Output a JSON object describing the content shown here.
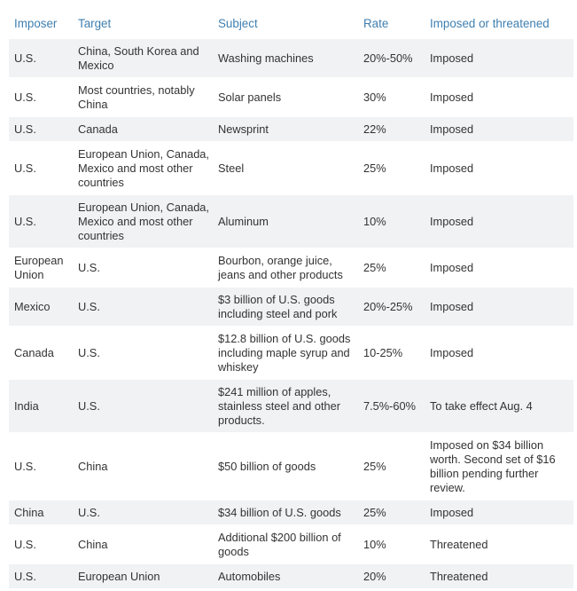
{
  "headers": {
    "imposer": "Imposer",
    "target": "Target",
    "subject": "Subject",
    "rate": "Rate",
    "status": "Imposed or threatened"
  },
  "rows": [
    {
      "imposer": "U.S.",
      "target": "China, South Korea and Mexico",
      "subject": "Washing machines",
      "rate": "20%-50%",
      "status": "Imposed"
    },
    {
      "imposer": "U.S.",
      "target": "Most countries, notably China",
      "subject": "Solar panels",
      "rate": "30%",
      "status": "Imposed"
    },
    {
      "imposer": "U.S.",
      "target": "Canada",
      "subject": "Newsprint",
      "rate": "22%",
      "status": "Imposed"
    },
    {
      "imposer": "U.S.",
      "target": "European Union, Canada, Mexico and most other countries",
      "subject": "Steel",
      "rate": "25%",
      "status": "Imposed"
    },
    {
      "imposer": "U.S.",
      "target": "European Union, Canada, Mexico and most other countries",
      "subject": "Aluminum",
      "rate": "10%",
      "status": "Imposed"
    },
    {
      "imposer": "European Union",
      "target": "U.S.",
      "subject": "Bourbon, orange juice, jeans and other products",
      "rate": "25%",
      "status": "Imposed"
    },
    {
      "imposer": "Mexico",
      "target": "U.S.",
      "subject": "$3 billion of U.S. goods including steel and pork",
      "rate": "20%-25%",
      "status": "Imposed"
    },
    {
      "imposer": "Canada",
      "target": "U.S.",
      "subject": "$12.8 billion of U.S. goods including maple syrup and whiskey",
      "rate": "10-25%",
      "status": "Imposed"
    },
    {
      "imposer": "India",
      "target": "U.S.",
      "subject": "$241 million of apples, stainless steel and other products.",
      "rate": "7.5%-60%",
      "status": "To take effect Aug. 4"
    },
    {
      "imposer": "U.S.",
      "target": "China",
      "subject": "$50 billion of goods",
      "rate": "25%",
      "status": "Imposed on $34 billion worth. Second set of $16 billion pending further review."
    },
    {
      "imposer": "China",
      "target": "U.S.",
      "subject": "$34 billion of U.S. goods",
      "rate": "25%",
      "status": "Imposed"
    },
    {
      "imposer": "U.S.",
      "target": "China",
      "subject": "Additional $200 billion of goods",
      "rate": "10%",
      "status": "Threatened"
    },
    {
      "imposer": "U.S.",
      "target": "European Union",
      "subject": "Automobiles",
      "rate": "20%",
      "status": "Threatened"
    }
  ]
}
